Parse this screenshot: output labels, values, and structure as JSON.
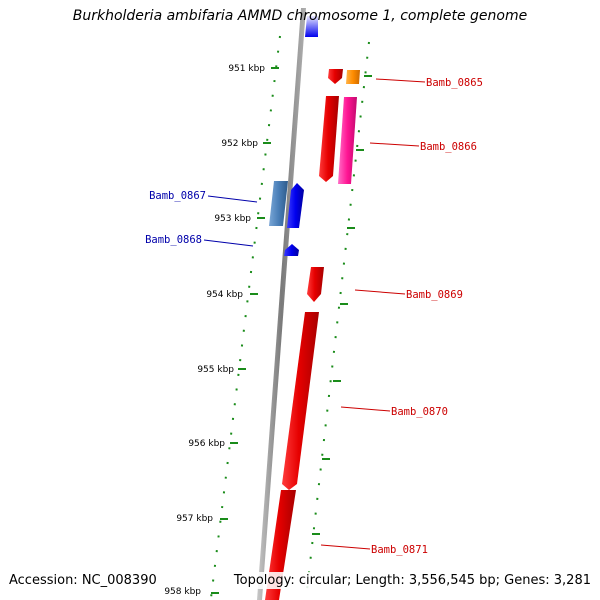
{
  "title": "Burkholderia ambifaria AMMD chromosome 1, complete genome",
  "footer": {
    "accession": "Accession: NC_008390",
    "topology": "Topology: circular; Length: 3,556,545 bp; Genes: 3,281"
  },
  "kbp_ticks": [
    "951 kbp",
    "952 kbp",
    "953 kbp",
    "954 kbp",
    "955 kbp",
    "956 kbp",
    "957 kbp",
    "958 kbp"
  ],
  "genes": [
    {
      "name": "Bamb_0865",
      "strand": "right",
      "color": "#cc0000",
      "feature_colors": [
        "#ff0000",
        "#ff8c00"
      ]
    },
    {
      "name": "Bamb_0866",
      "strand": "right",
      "color": "#cc0000",
      "feature_colors": [
        "#ff0000",
        "#ff1493"
      ]
    },
    {
      "name": "Bamb_0867",
      "strand": "left",
      "color": "#0000aa",
      "feature_colors": [
        "#4a7fb8",
        "#0000ff"
      ]
    },
    {
      "name": "Bamb_0868",
      "strand": "left",
      "color": "#0000aa",
      "feature_colors": [
        "#0000ff"
      ]
    },
    {
      "name": "Bamb_0869",
      "strand": "right",
      "color": "#cc0000",
      "feature_colors": [
        "#ff0000"
      ]
    },
    {
      "name": "Bamb_0870",
      "strand": "right",
      "color": "#cc0000",
      "feature_colors": [
        "#ff0000"
      ]
    },
    {
      "name": "Bamb_0871",
      "strand": "right",
      "color": "#cc0000",
      "feature_colors": [
        "#ff0000"
      ]
    }
  ],
  "colors": {
    "backbone": "#8c8c8c",
    "tick_green": "#1a8c1a"
  }
}
